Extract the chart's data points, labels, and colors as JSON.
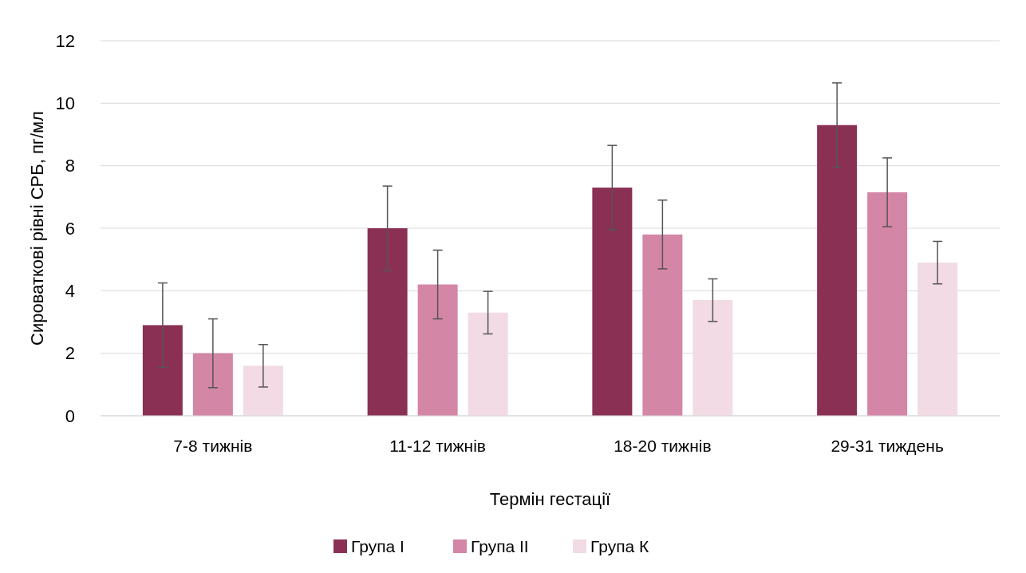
{
  "chart_data": {
    "type": "bar",
    "xlabel": "Термін гестації",
    "ylabel": "Сироваткові рівні СРБ, пг/мл",
    "categories": [
      "7-8 тижнів",
      "11-12 тижнів",
      "18-20 тижнів",
      "29-31 тиждень"
    ],
    "series": [
      {
        "name": "Група I",
        "color": "#8b3055",
        "values": [
          2.9,
          6.0,
          7.3,
          9.3
        ],
        "errors": [
          1.35,
          1.35,
          1.35,
          1.35
        ]
      },
      {
        "name": "Група II",
        "color": "#d486a6",
        "values": [
          2.0,
          4.2,
          5.8,
          7.15
        ],
        "errors": [
          1.1,
          1.1,
          1.1,
          1.1
        ]
      },
      {
        "name": "Група К",
        "color": "#f2dbe4",
        "values": [
          1.6,
          3.3,
          3.7,
          4.9
        ],
        "errors": [
          0.68,
          0.68,
          0.68,
          0.68
        ]
      }
    ],
    "ylim": [
      0,
      12
    ],
    "yticks": [
      0,
      2,
      4,
      6,
      8,
      10,
      12
    ],
    "grid": "y",
    "legend": "bottom"
  }
}
